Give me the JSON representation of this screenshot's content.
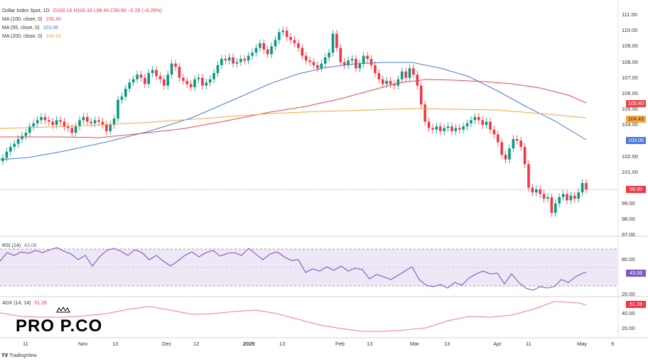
{
  "panels": {
    "price": {
      "legend": {
        "title": "Dollar Index Spot, 1D",
        "ohlc": "O100.18 H100.33 L99.40 C99.90 −0.28 (−0.28%)",
        "ma1_label": "MA (100, close, 0)",
        "ma1_value": "105.40",
        "ma2_label": "MA (55, close, 0)",
        "ma2_value": "103.06",
        "ma3_label": "MA (200, close, 0)",
        "ma3_value": "104.43"
      },
      "y_ticks": [
        "111.00",
        "110.00",
        "109.00",
        "108.00",
        "107.00",
        "106.00",
        "105.00",
        "104.00",
        "102.00",
        "101.00",
        "99.00",
        "98.00",
        "97.00"
      ],
      "tags": {
        "ma100": "105.40",
        "ma200": "104.43",
        "ma55": "103.06",
        "close": "99.90"
      }
    },
    "rsi": {
      "legend": {
        "label": "RSI (14)",
        "value": "43.08"
      },
      "y_ticks": [
        "80.00",
        "20.00"
      ],
      "tag": "43.08"
    },
    "adx": {
      "legend": {
        "label": "ADX (14, 14)",
        "value": "51.28"
      },
      "y_ticks": [
        "40.00",
        "20.00"
      ],
      "tag": "51.28"
    }
  },
  "x_axis": [
    "11",
    "Nov",
    "13",
    "Dec",
    "12",
    "2025",
    "13",
    "Feb",
    "13",
    "Mar",
    "13",
    "Apr",
    "11",
    "May",
    "9"
  ],
  "logo_text": "PRO  P.CO",
  "footer": "TradingView",
  "colors": {
    "up": "#089981",
    "down": "#f23645",
    "ma100": "#e8474e",
    "ma55": "#4a78d8",
    "ma200": "#f2a640",
    "rsi": "#7e57c2",
    "adx": "#f77c80"
  },
  "chart_data": {
    "type": "line",
    "title": "Dollar Index Spot, 1D",
    "series": [
      {
        "name": "MA (100, close, 0)",
        "last": 105.4
      },
      {
        "name": "MA (55, close, 0)",
        "last": 103.06
      },
      {
        "name": "MA (200, close, 0)",
        "last": 104.43
      }
    ],
    "close": 99.9,
    "ylim": [
      97,
      111
    ],
    "rsi_last": 43.08,
    "adx_last": 51.28
  }
}
